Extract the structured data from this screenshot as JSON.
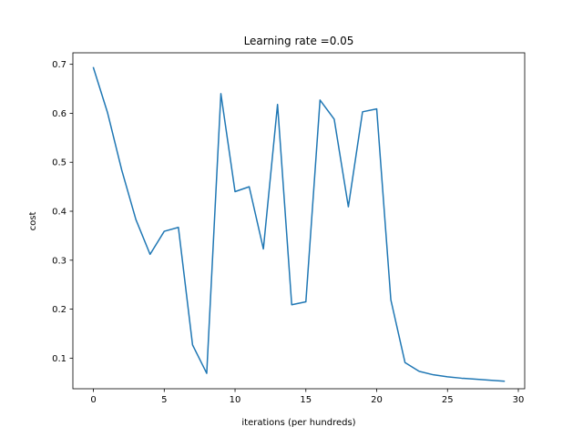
{
  "chart_data": {
    "type": "line",
    "title": "Learning rate =0.05",
    "xlabel": "iterations (per hundreds)",
    "ylabel": "cost",
    "xlim": [
      -1.45,
      30.45
    ],
    "ylim": [
      0.0375,
      0.7235
    ],
    "xticks": [
      0,
      5,
      10,
      15,
      20,
      25,
      30
    ],
    "yticks": [
      0.1,
      0.2,
      0.3,
      0.4,
      0.5,
      0.6,
      0.7
    ],
    "grid": false,
    "series": [
      {
        "color": "#1f77b4",
        "x": [
          0,
          1,
          2,
          3,
          4,
          5,
          6,
          7,
          8,
          9,
          10,
          11,
          12,
          13,
          14,
          15,
          16,
          17,
          18,
          19,
          20,
          21,
          22,
          23,
          24,
          25,
          26,
          27,
          28,
          29
        ],
        "y": [
          0.693,
          0.601,
          0.484,
          0.383,
          0.312,
          0.359,
          0.367,
          0.127,
          0.069,
          0.64,
          0.44,
          0.45,
          0.323,
          0.618,
          0.209,
          0.215,
          0.627,
          0.588,
          0.409,
          0.603,
          0.609,
          0.219,
          0.091,
          0.073,
          0.066,
          0.062,
          0.059,
          0.057,
          0.055,
          0.053
        ]
      }
    ]
  }
}
